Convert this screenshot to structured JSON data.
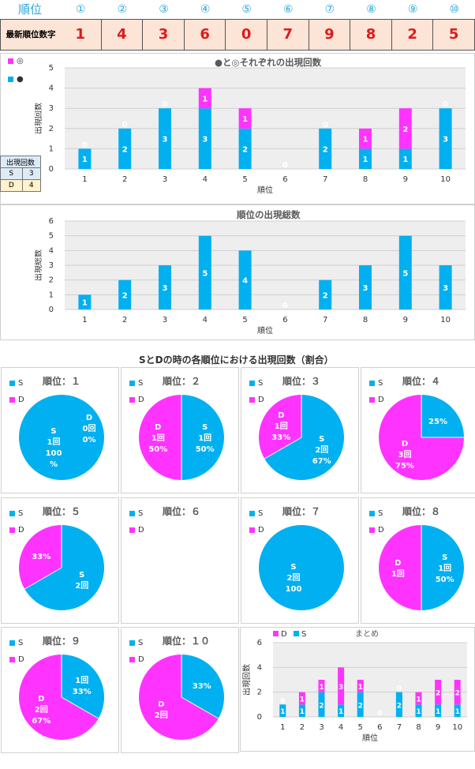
{
  "header": {
    "rank_label": "順位",
    "rank_numbers": [
      "①",
      "②",
      "③",
      "④",
      "⑤",
      "⑥",
      "⑦",
      "⑧",
      "⑨",
      "⑩"
    ],
    "latest_label": "最新順位数字",
    "latest_digits": [
      "1",
      "4",
      "3",
      "6",
      "0",
      "7",
      "9",
      "8",
      "2",
      "5"
    ]
  },
  "sd_table": {
    "title": "出現回数",
    "rows": [
      {
        "name": "S",
        "value": "3"
      },
      {
        "name": "D",
        "value": "4"
      }
    ]
  },
  "colors": {
    "magenta": "#ff33ff",
    "cyan": "#00b0f0",
    "latest_bg": "#fce4d6",
    "latest_text": "#e0191b"
  },
  "section_title": "SとDの時の各順位における出現回数（割合）",
  "chart_data": [
    {
      "type": "bar",
      "title": "●と◎それぞれの出現回数",
      "xlabel": "順位",
      "ylabel": "出現回数",
      "legend": [
        "◎",
        "●"
      ],
      "categories": [
        "1",
        "2",
        "3",
        "4",
        "5",
        "6",
        "7",
        "8",
        "9",
        "10"
      ],
      "ylim": [
        0,
        5
      ],
      "yticks": [
        0,
        1,
        2,
        3,
        4,
        5
      ],
      "series": [
        {
          "name": "●",
          "values": [
            1,
            2,
            3,
            3,
            2,
            0,
            2,
            1,
            1,
            3
          ]
        },
        {
          "name": "◎",
          "values": [
            0,
            0,
            0,
            1,
            1,
            0,
            0,
            1,
            2,
            0
          ]
        }
      ]
    },
    {
      "type": "bar",
      "title": "順位の出現総数",
      "xlabel": "順位",
      "ylabel": "出現総数",
      "categories": [
        "1",
        "2",
        "3",
        "4",
        "5",
        "6",
        "7",
        "8",
        "9",
        "10"
      ],
      "ylim": [
        0,
        6
      ],
      "yticks": [
        0,
        1,
        2,
        3,
        4,
        5,
        6
      ],
      "values": [
        1,
        2,
        3,
        5,
        4,
        0,
        2,
        3,
        5,
        3
      ]
    },
    {
      "type": "pie",
      "pies": [
        {
          "title": "順位：１",
          "s": 1,
          "d": 0,
          "s_label": [
            "S",
            "1回",
            "100",
            "%"
          ],
          "d_label": [
            "D",
            "0回",
            "0%"
          ]
        },
        {
          "title": "順位：２",
          "s": 1,
          "d": 1,
          "s_label": [
            "S",
            "1回",
            "50%"
          ],
          "d_label": [
            "D",
            "1回",
            "50%"
          ]
        },
        {
          "title": "順位：３",
          "s": 2,
          "d": 1,
          "s_label": [
            "S",
            "2回",
            "67%"
          ],
          "d_label": [
            "D",
            "1回",
            "33%"
          ]
        },
        {
          "title": "順位：４",
          "s": 1,
          "d": 3,
          "s_label": [
            "25%"
          ],
          "d_label": [
            "D",
            "3回",
            "75%"
          ]
        },
        {
          "title": "順位：５",
          "s": 2,
          "d": 1,
          "s_label": [
            "S",
            "2回"
          ],
          "d_label": [
            "33%"
          ]
        },
        {
          "title": "順位：６",
          "s": 0,
          "d": 0,
          "s_label": [],
          "d_label": []
        },
        {
          "title": "順位：７",
          "s": 2,
          "d": 0,
          "s_label": [
            "S",
            "2回",
            "100"
          ],
          "d_label": []
        },
        {
          "title": "順位：８",
          "s": 1,
          "d": 1,
          "s_label": [
            "S",
            "1回",
            "50%"
          ],
          "d_label": [
            "D",
            "1回"
          ]
        },
        {
          "title": "順位：９",
          "s": 1,
          "d": 2,
          "s_label": [
            "1回",
            "33%"
          ],
          "d_label": [
            "D",
            "2回",
            "67%"
          ]
        },
        {
          "title": "順位：１０",
          "s": 1,
          "d": 2,
          "s_label": [
            "33%"
          ],
          "d_label": [
            "D",
            "2回"
          ]
        }
      ],
      "legend": [
        "S",
        "D"
      ]
    },
    {
      "type": "bar",
      "title": "まとめ",
      "xlabel": "順位",
      "ylabel": "出現回数",
      "legend": [
        "D",
        "S"
      ],
      "categories": [
        "1",
        "2",
        "3",
        "4",
        "5",
        "6",
        "7",
        "8",
        "9",
        "10"
      ],
      "ylim": [
        0,
        6
      ],
      "yticks": [
        0,
        2,
        4,
        6
      ],
      "series": [
        {
          "name": "S",
          "values": [
            1,
            1,
            2,
            1,
            2,
            0,
            2,
            1,
            1,
            1
          ]
        },
        {
          "name": "D",
          "values": [
            0,
            1,
            1,
            3,
            1,
            0,
            0,
            1,
            2,
            2
          ]
        }
      ]
    }
  ]
}
